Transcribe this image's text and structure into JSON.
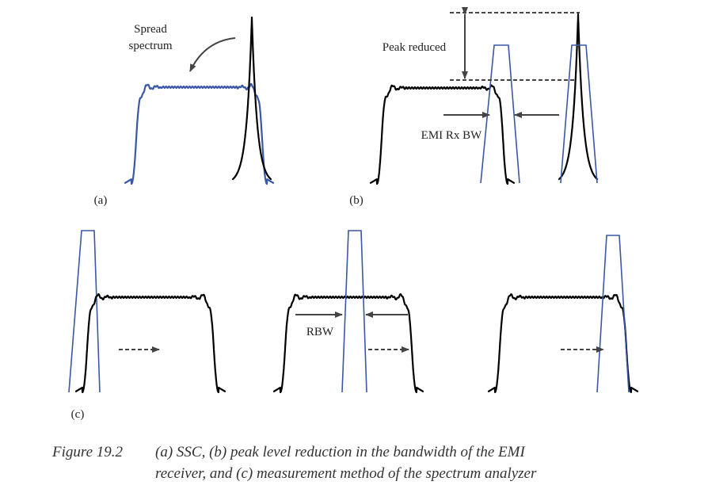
{
  "labels": {
    "spread_spectrum_line1": "Spread",
    "spread_spectrum_line2": "spectrum",
    "peak_reduced": "Peak reduced",
    "emi_rx_bw": "EMI Rx BW",
    "rbw": "RBW"
  },
  "panels": {
    "a": "(a)",
    "b": "(b)",
    "c": "(c)"
  },
  "caption": {
    "number": "Figure 19.2",
    "line1": "(a) SSC, (b) peak level reduction in the bandwidth of the EMI",
    "line2": "receiver, and (c) measurement method of the spectrum analyzer"
  },
  "colors": {
    "spectrum": "#000000",
    "filter": "#3a57a8",
    "arrow": "#444444"
  }
}
